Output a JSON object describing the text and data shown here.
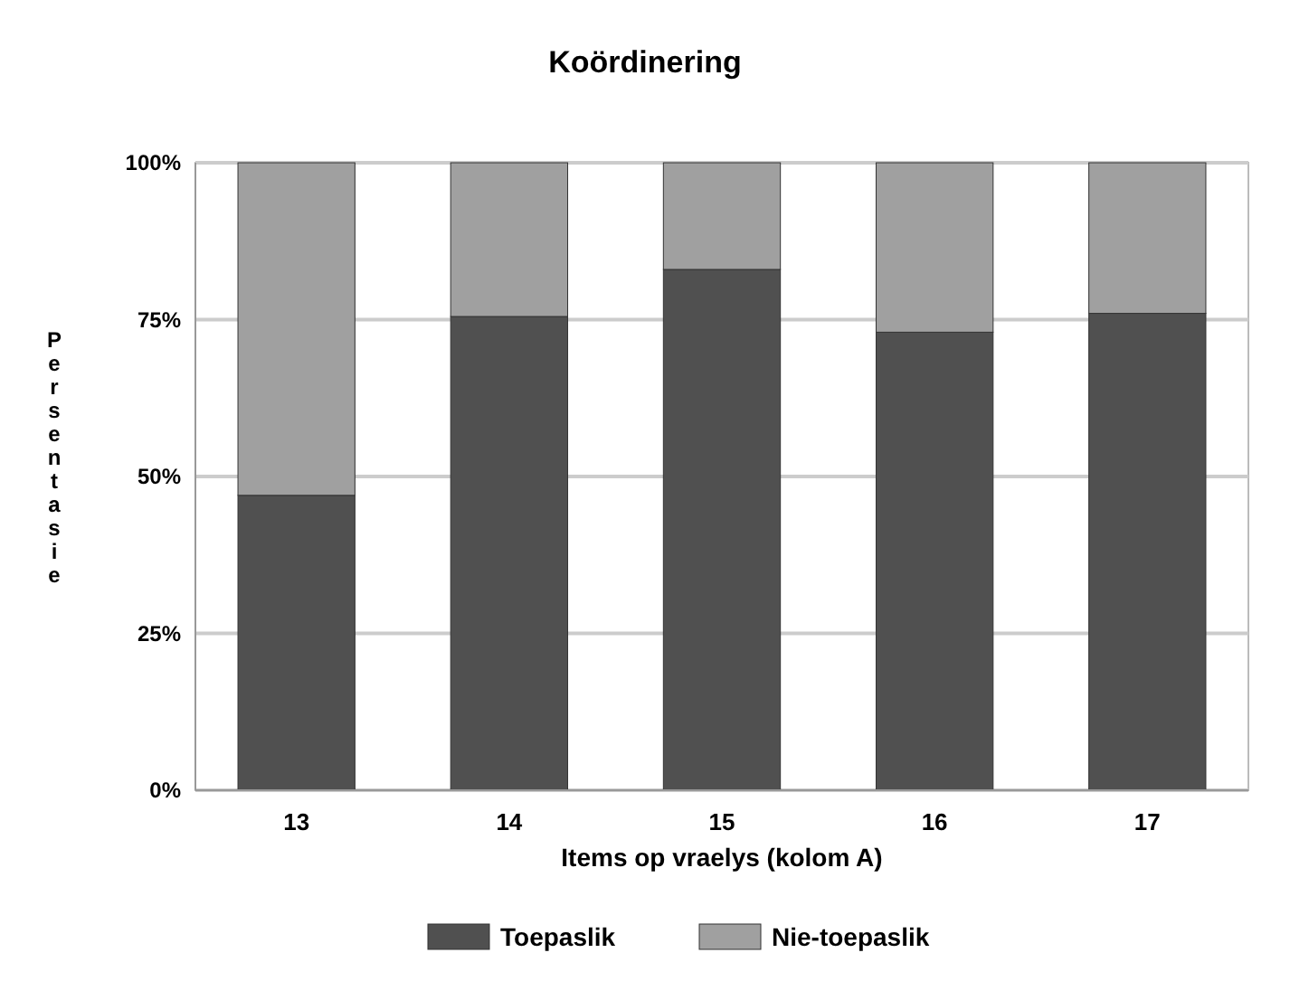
{
  "chart_data": {
    "type": "bar",
    "title": "Koördinering",
    "xlabel": "Items op vraelys (kolom A)",
    "ylabel": "Persentasie",
    "categories": [
      "13",
      "14",
      "15",
      "16",
      "17"
    ],
    "stacked": true,
    "series": [
      {
        "name": "Toepaslik",
        "color": "#505050",
        "values": [
          47,
          75.5,
          83,
          73,
          76
        ]
      },
      {
        "name": "Nie-toepaslik",
        "color": "#a0a0a0",
        "values": [
          53,
          24.5,
          17,
          27,
          24
        ]
      }
    ],
    "ylim": [
      0,
      100
    ],
    "yticks": [
      {
        "value": 0,
        "label": "0%"
      },
      {
        "value": 25,
        "label": "25%"
      },
      {
        "value": 50,
        "label": "50%"
      },
      {
        "value": 75,
        "label": "75%"
      },
      {
        "value": 100,
        "label": "100%"
      }
    ],
    "grid": "y",
    "legend": "bottom"
  }
}
